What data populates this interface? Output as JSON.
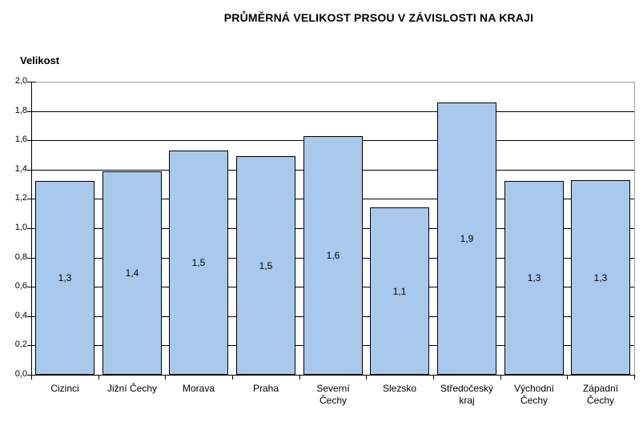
{
  "chart_data": {
    "type": "bar",
    "title": "PRŮMĚRNÁ VELIKOST PRSOU V ZÁVISLOSTI NA KRAJI",
    "ylabel": "Velikost",
    "xlabel": "",
    "categories": [
      "Cizinci",
      "Jižní Čechy",
      "Morava",
      "Praha",
      "Severní Čechy",
      "Slezsko",
      "Středočeský kraj",
      "Východní Čechy",
      "Západní Čechy"
    ],
    "categories_display": [
      "Cizinci",
      "Jižní Čechy",
      "Morava",
      "Praha",
      "Severní\nČechy",
      "Slezsko",
      "Středočeský\nkraj",
      "Východní\nČechy",
      "Západní\nČechy"
    ],
    "values": [
      1.32,
      1.39,
      1.53,
      1.49,
      1.63,
      1.14,
      1.86,
      1.32,
      1.33
    ],
    "bar_labels": [
      "1,3",
      "1,4",
      "1,5",
      "1,5",
      "1,6",
      "1,1",
      "1,9",
      "1,3",
      "1,3"
    ],
    "ylim": [
      0,
      2
    ],
    "ytick_step": 0.2,
    "ytick_labels": [
      "0,0",
      "0,2",
      "0,4",
      "0,6",
      "0,8",
      "1,0",
      "1,2",
      "1,4",
      "1,6",
      "1,8",
      "2,0"
    ],
    "grid": true,
    "legend": "none",
    "colors": {
      "bar_fill": "#A9C9EC",
      "bar_border": "#000000",
      "gridline": "#000000",
      "axis": "#000000",
      "plot_border": "#A0A0A0",
      "background": "#FFFFFF",
      "text": "#000000"
    }
  }
}
